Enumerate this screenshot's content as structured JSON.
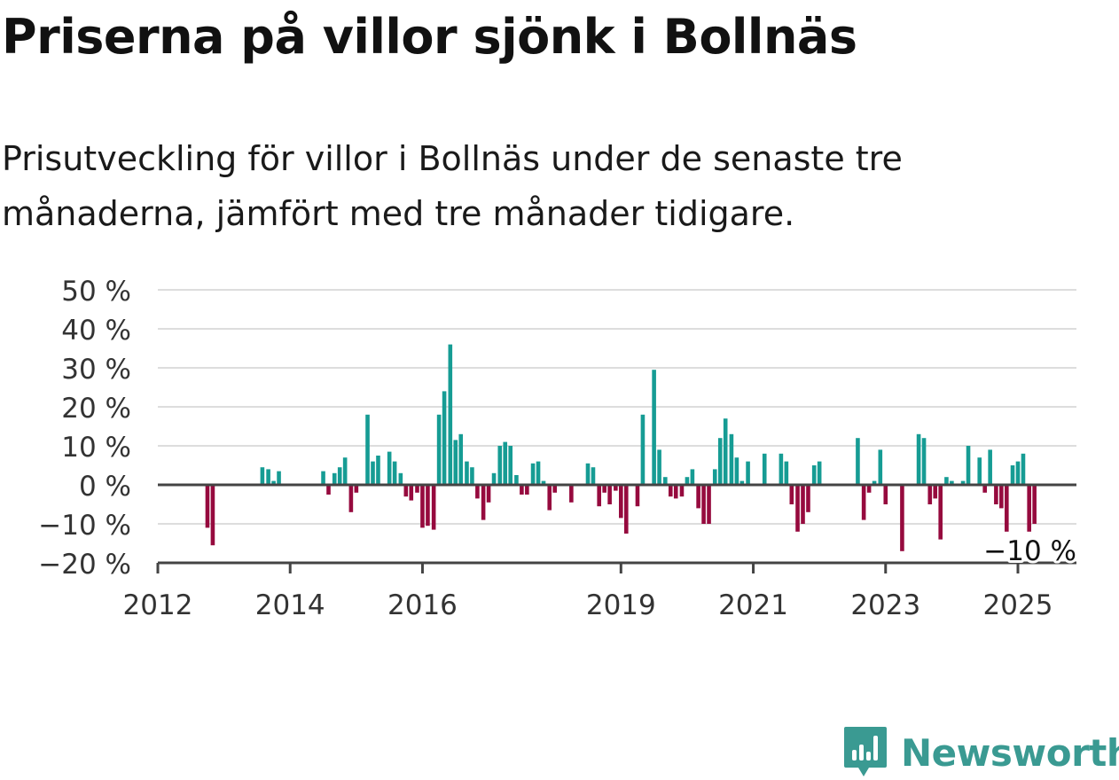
{
  "title": "Priserna på villor sjönk i Bollnäs",
  "subtitle": "Prisutveckling för villor i Bollnäs under de senaste tre månaderna, jämfört med tre månader tidigare.",
  "brand": {
    "name": "Newsworthy",
    "color": "#3a9a92"
  },
  "colors": {
    "positive": "#169c94",
    "negative": "#960a3e",
    "grid": "#dddddd",
    "axis": "#444444"
  },
  "chart_data": {
    "type": "bar",
    "unit": "%",
    "ylim": [
      -20,
      50
    ],
    "yticks": [
      "50 %",
      "40 %",
      "30 %",
      "20 %",
      "10 %",
      "0 %",
      "−10 %",
      "−20 %"
    ],
    "ytick_values": [
      50,
      40,
      30,
      20,
      10,
      0,
      -10,
      -20
    ],
    "xticks": [
      {
        "label": "2012",
        "date": 2012.0
      },
      {
        "label": "2014",
        "date": 2014.0
      },
      {
        "label": "2016",
        "date": 2016.0
      },
      {
        "label": "2019",
        "date": 2019.0
      },
      {
        "label": "2021",
        "date": 2021.0
      },
      {
        "label": "2023",
        "date": 2023.0
      },
      {
        "label": "2025",
        "date": 2025.0
      }
    ],
    "grid": true,
    "last_value_label": "−10 %",
    "series": [
      {
        "data": [
          [
            2012.75,
            -11
          ],
          [
            2012.83,
            -15.5
          ],
          [
            2013.58,
            4.5
          ],
          [
            2013.67,
            4
          ],
          [
            2013.75,
            1
          ],
          [
            2013.83,
            3.5
          ],
          [
            2014.5,
            3.5
          ],
          [
            2014.58,
            -2.5
          ],
          [
            2014.67,
            3
          ],
          [
            2014.75,
            4.5
          ],
          [
            2014.83,
            7
          ],
          [
            2014.92,
            -7
          ],
          [
            2015.0,
            -2
          ],
          [
            2015.17,
            18
          ],
          [
            2015.25,
            6
          ],
          [
            2015.33,
            7.5
          ],
          [
            2015.5,
            8.5
          ],
          [
            2015.58,
            6
          ],
          [
            2015.67,
            3
          ],
          [
            2015.75,
            -3
          ],
          [
            2015.83,
            -4
          ],
          [
            2015.92,
            -2
          ],
          [
            2016.0,
            -11
          ],
          [
            2016.08,
            -10.5
          ],
          [
            2016.17,
            -11.5
          ],
          [
            2016.25,
            18
          ],
          [
            2016.33,
            24
          ],
          [
            2016.42,
            36
          ],
          [
            2016.5,
            11.5
          ],
          [
            2016.58,
            13
          ],
          [
            2016.67,
            6
          ],
          [
            2016.75,
            4.5
          ],
          [
            2016.83,
            -3.5
          ],
          [
            2016.92,
            -9
          ],
          [
            2017.0,
            -4.5
          ],
          [
            2017.08,
            3
          ],
          [
            2017.17,
            10
          ],
          [
            2017.25,
            11
          ],
          [
            2017.33,
            10
          ],
          [
            2017.42,
            2.5
          ],
          [
            2017.5,
            -2.5
          ],
          [
            2017.58,
            -2.5
          ],
          [
            2017.67,
            5.5
          ],
          [
            2017.75,
            6
          ],
          [
            2017.83,
            1
          ],
          [
            2017.92,
            -6.5
          ],
          [
            2018.0,
            -2
          ],
          [
            2018.25,
            -4.5
          ],
          [
            2018.5,
            5.5
          ],
          [
            2018.58,
            4.5
          ],
          [
            2018.67,
            -5.5
          ],
          [
            2018.75,
            -2
          ],
          [
            2018.83,
            -5
          ],
          [
            2018.92,
            -1.5
          ],
          [
            2019.0,
            -8.5
          ],
          [
            2019.08,
            -12.5
          ],
          [
            2019.25,
            -5.5
          ],
          [
            2019.33,
            18
          ],
          [
            2019.5,
            29.5
          ],
          [
            2019.58,
            9
          ],
          [
            2019.67,
            2
          ],
          [
            2019.75,
            -3
          ],
          [
            2019.83,
            -3.5
          ],
          [
            2019.92,
            -3
          ],
          [
            2020.0,
            2
          ],
          [
            2020.08,
            4
          ],
          [
            2020.17,
            -6
          ],
          [
            2020.25,
            -10
          ],
          [
            2020.33,
            -10
          ],
          [
            2020.42,
            4
          ],
          [
            2020.5,
            12
          ],
          [
            2020.58,
            17
          ],
          [
            2020.67,
            13
          ],
          [
            2020.75,
            7
          ],
          [
            2020.83,
            1
          ],
          [
            2020.92,
            6
          ],
          [
            2021.17,
            8
          ],
          [
            2021.42,
            8
          ],
          [
            2021.5,
            6
          ],
          [
            2021.58,
            -5
          ],
          [
            2021.67,
            -12
          ],
          [
            2021.75,
            -10
          ],
          [
            2021.83,
            -7
          ],
          [
            2021.92,
            5
          ],
          [
            2022.0,
            6
          ],
          [
            2022.58,
            12
          ],
          [
            2022.67,
            -9
          ],
          [
            2022.75,
            -2
          ],
          [
            2022.83,
            1
          ],
          [
            2022.92,
            9
          ],
          [
            2023.0,
            -5
          ],
          [
            2023.25,
            -17
          ],
          [
            2023.5,
            13
          ],
          [
            2023.58,
            12
          ],
          [
            2023.67,
            -5
          ],
          [
            2023.75,
            -3.5
          ],
          [
            2023.83,
            -14
          ],
          [
            2023.92,
            2
          ],
          [
            2024.0,
            1
          ],
          [
            2024.17,
            1
          ],
          [
            2024.25,
            10
          ],
          [
            2024.42,
            7
          ],
          [
            2024.5,
            -2
          ],
          [
            2024.58,
            9
          ],
          [
            2024.67,
            -5
          ],
          [
            2024.75,
            -6
          ],
          [
            2024.83,
            -12
          ],
          [
            2024.92,
            5
          ],
          [
            2025.0,
            6
          ],
          [
            2025.08,
            8
          ],
          [
            2025.17,
            -12
          ],
          [
            2025.25,
            -10
          ]
        ]
      }
    ]
  }
}
